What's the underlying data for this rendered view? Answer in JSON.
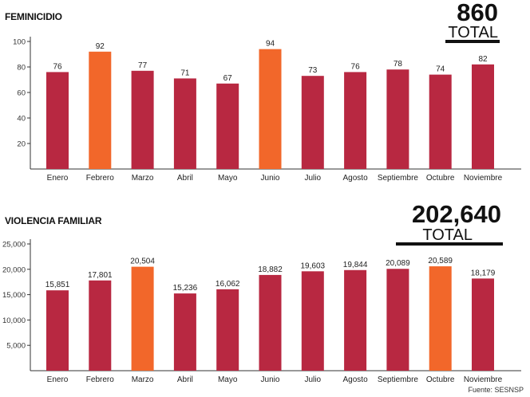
{
  "colors": {
    "bar": "#b82841",
    "highlight": "#f2672a",
    "axis": "#333333",
    "grid": "#dddddd"
  },
  "chart_data": [
    {
      "type": "bar",
      "title": "FEMINICIDIO",
      "total_value": "860",
      "total_label": "TOTAL",
      "categories": [
        "Enero",
        "Febrero",
        "Marzo",
        "Abril",
        "Mayo",
        "Junio",
        "Julio",
        "Agosto",
        "Septiembre",
        "Octubre",
        "Noviembre"
      ],
      "values": [
        76,
        92,
        77,
        71,
        67,
        94,
        73,
        76,
        78,
        74,
        82
      ],
      "value_labels": [
        "76",
        "92",
        "77",
        "71",
        "67",
        "94",
        "73",
        "76",
        "78",
        "74",
        "82"
      ],
      "highlighted": [
        false,
        true,
        false,
        false,
        false,
        true,
        false,
        false,
        false,
        false,
        false
      ],
      "yticks": [
        20,
        40,
        60,
        80,
        100
      ],
      "ytick_labels": [
        "20",
        "40",
        "60",
        "80",
        "100"
      ],
      "ylim": [
        0,
        100
      ],
      "xlabel": "",
      "ylabel": ""
    },
    {
      "type": "bar",
      "title": "VIOLENCIA FAMILIAR",
      "total_value": "202,640",
      "total_label": "TOTAL",
      "categories": [
        "Enero",
        "Febrero",
        "Marzo",
        "Abril",
        "Mayo",
        "Junio",
        "Julio",
        "Agosto",
        "Septiembre",
        "Octubre",
        "Noviembre"
      ],
      "values": [
        15851,
        17801,
        20504,
        15236,
        16062,
        18882,
        19603,
        19844,
        20089,
        20589,
        18179
      ],
      "value_labels": [
        "15,851",
        "17,801",
        "20,504",
        "15,236",
        "16,062",
        "18,882",
        "19,603",
        "19,844",
        "20,089",
        "20,589",
        "18,179"
      ],
      "highlighted": [
        false,
        false,
        true,
        false,
        false,
        false,
        false,
        false,
        false,
        true,
        false
      ],
      "yticks": [
        5000,
        10000,
        15000,
        20000,
        25000
      ],
      "ytick_labels": [
        "5,000",
        "10,000",
        "15,000",
        "20,000",
        "25,000"
      ],
      "ylim": [
        0,
        25000
      ],
      "xlabel": "",
      "ylabel": ""
    }
  ],
  "source": "Fuente: SESNSP"
}
